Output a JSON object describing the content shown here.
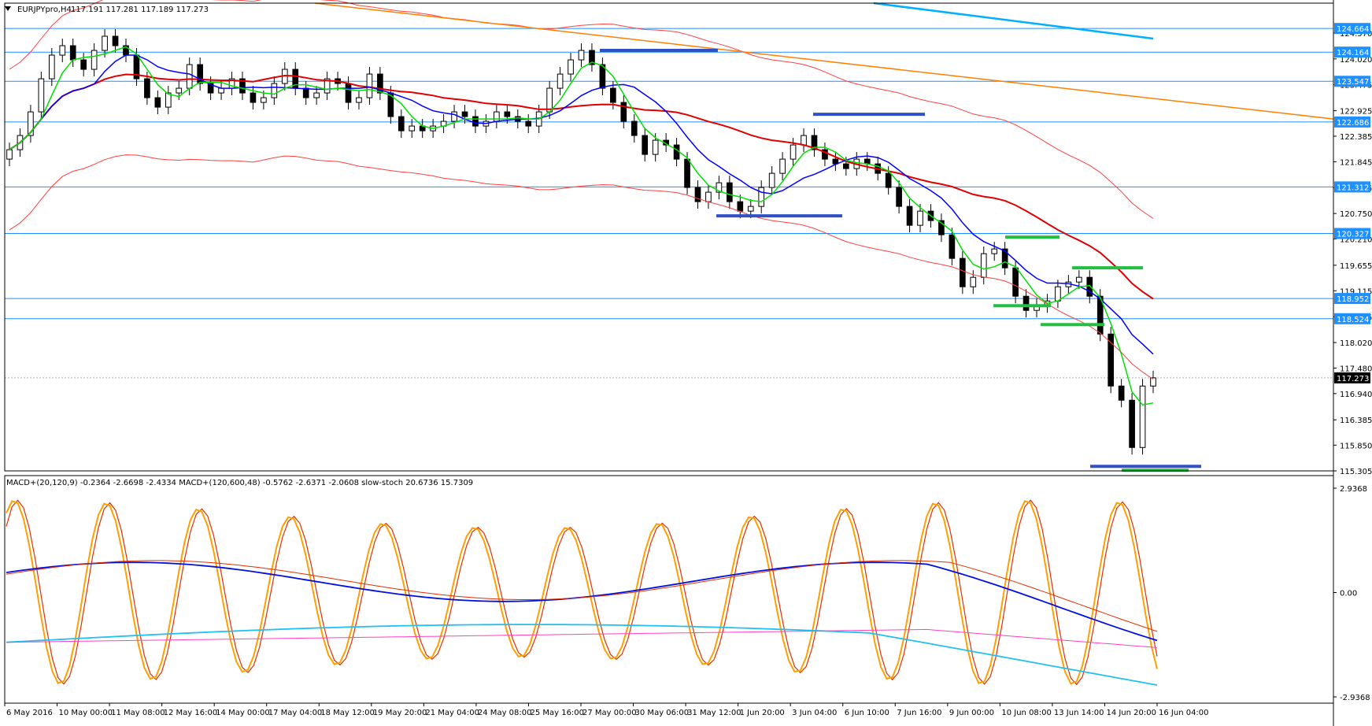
{
  "chart_data": {
    "type": "candlestick",
    "symbol_header": "EURJPYpro,H4",
    "ohlc_header": "117.191 117.281 117.189 117.273",
    "ohlc": {
      "open": 117.191,
      "high": 117.281,
      "low": 117.189,
      "close": 117.273
    },
    "price_axis": {
      "range": [
        115.305,
        125.2
      ],
      "ticks": [
        "124.570",
        "124.020",
        "123.475",
        "122.925",
        "122.385",
        "121.845",
        "121.295",
        "120.750",
        "120.210",
        "119.655",
        "119.115",
        "118.565",
        "118.020",
        "117.480",
        "116.940",
        "116.385",
        "115.850",
        "115.305"
      ]
    },
    "level_tags": [
      {
        "label": "124.664",
        "value": 124.664
      },
      {
        "label": "124.164",
        "value": 124.164
      },
      {
        "label": "123.547",
        "value": 123.547
      },
      {
        "label": "122.686",
        "value": 122.686
      },
      {
        "label": "121.312",
        "value": 121.312
      },
      {
        "label": "120.327",
        "value": 120.327
      },
      {
        "label": "118.952",
        "value": 118.952
      },
      {
        "label": "118.524",
        "value": 118.524
      }
    ],
    "current_price": {
      "label": "117.273",
      "value": 117.273
    },
    "time_axis": [
      "6 May 2016",
      "10 May 00:00",
      "11 May 08:00",
      "12 May 16:00",
      "14 May 00:00",
      "17 May 04:00",
      "18 May 12:00",
      "19 May 20:00",
      "21 May 04:00",
      "24 May 08:00",
      "25 May 16:00",
      "27 May 00:00",
      "30 May 06:00",
      "31 May 12:00",
      "1 Jun 20:00",
      "3 Jun 04:00",
      "6 Jun 10:00",
      "7 Jun 16:00",
      "9 Jun 00:00",
      "10 Jun 08:00",
      "13 Jun 14:00",
      "14 Jun 20:00",
      "16 Jun 04:00"
    ],
    "candle_closes": [
      122.1,
      122.4,
      122.9,
      123.6,
      124.1,
      124.3,
      124.0,
      123.8,
      124.2,
      124.5,
      124.3,
      124.1,
      123.6,
      123.2,
      123.0,
      123.3,
      123.4,
      123.9,
      123.5,
      123.3,
      123.4,
      123.6,
      123.3,
      123.1,
      123.2,
      123.5,
      123.8,
      123.4,
      123.2,
      123.3,
      123.6,
      123.5,
      123.1,
      123.2,
      123.7,
      123.3,
      122.8,
      122.5,
      122.6,
      122.5,
      122.6,
      122.7,
      122.9,
      122.8,
      122.6,
      122.7,
      122.9,
      122.8,
      122.7,
      122.6,
      122.9,
      123.4,
      123.7,
      124.0,
      124.2,
      123.9,
      123.4,
      123.1,
      122.7,
      122.4,
      122.0,
      122.3,
      122.2,
      121.9,
      121.3,
      121.0,
      121.2,
      121.4,
      121.0,
      120.8,
      120.9,
      121.3,
      121.6,
      121.9,
      122.2,
      122.4,
      122.1,
      121.9,
      121.8,
      121.7,
      121.9,
      121.8,
      121.6,
      121.3,
      120.9,
      120.5,
      120.8,
      120.6,
      120.3,
      119.8,
      119.2,
      119.4,
      119.9,
      120.0,
      119.6,
      119.0,
      118.7,
      118.8,
      118.9,
      119.2,
      119.3,
      119.4,
      119.0,
      118.2,
      117.1,
      116.8,
      115.8,
      117.1,
      117.273
    ],
    "support_resistance_marks": [
      {
        "color": "blue",
        "level": 124.2
      },
      {
        "color": "blue",
        "level": 122.85
      },
      {
        "color": "blue",
        "level": 120.7
      },
      {
        "color": "green",
        "level": 120.25
      },
      {
        "color": "green",
        "level": 119.6
      },
      {
        "color": "green",
        "level": 118.8
      },
      {
        "color": "green",
        "level": 118.4
      },
      {
        "color": "blue",
        "level": 115.4
      },
      {
        "color": "green",
        "level": 115.32
      }
    ],
    "indicator_panel": {
      "header": "MACD+(20,120,9) -0.2364 -2.6698 -2.4334  MACD+(120,600,48) -0.5762 -2.6371 -2.0608  slow-stoch 20.6736 15.7309",
      "axis_labels": [
        "2.9368",
        "0.00",
        "-2.9368"
      ],
      "range": [
        -2.9368,
        2.9368
      ]
    },
    "colors": {
      "bull": "#ffffff",
      "bear": "#000000",
      "ma_fast": "#00e000",
      "ma_mid": "#0000ff",
      "ma_slow": "#e00000",
      "envelope": "#ff4040",
      "trend": "#ff8000",
      "trend2": "#00b0ff",
      "level_line": "#1e90ff",
      "tag_bg": "#1e90ff",
      "sr_blue": "#3050c8",
      "sr_green": "#20c040",
      "stoch_a": "#ffa000",
      "stoch_b": "#e03000",
      "macd_blue": "#0010e0",
      "macd_cyan": "#20c0f0",
      "macd_magenta": "#ff40c0"
    }
  }
}
